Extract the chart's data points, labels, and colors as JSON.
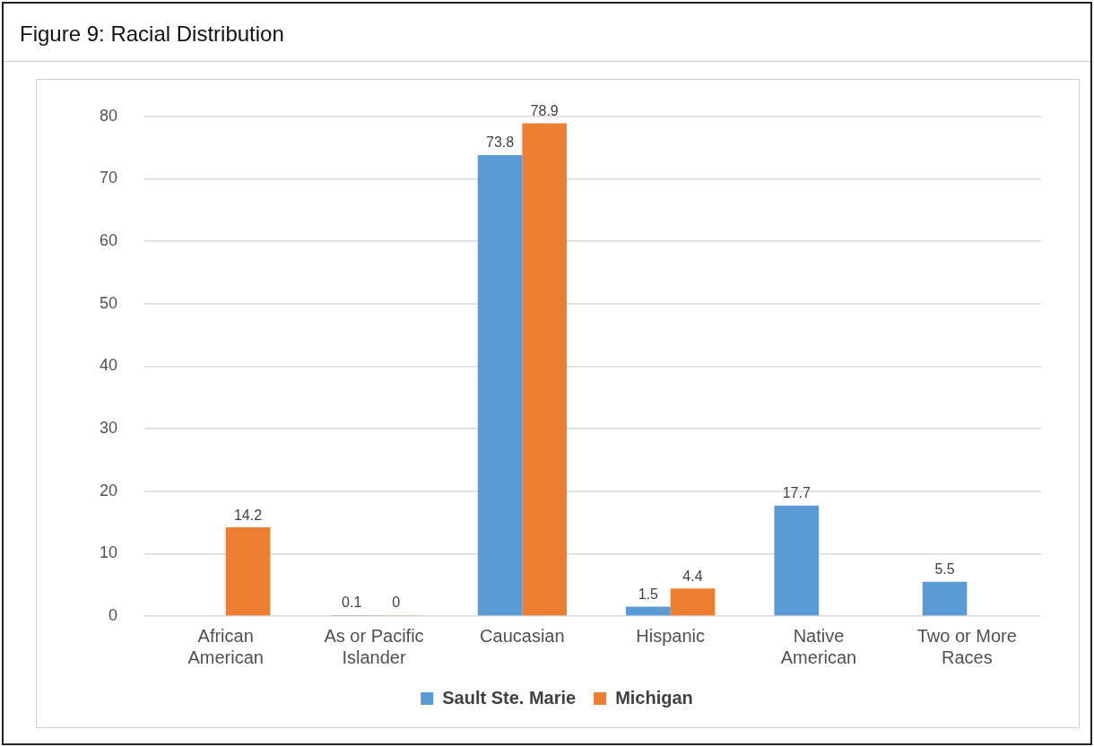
{
  "chart_data": {
    "type": "bar",
    "title": "Figure 9: Racial Distribution",
    "categories": [
      "African American",
      "As or Pacific Islander",
      "Caucasian",
      "Hispanic",
      "Native American",
      "Two or More Races"
    ],
    "series": [
      {
        "name": "Sault Ste. Marie",
        "color": "#5b9bd5",
        "values": [
          null,
          0.1,
          73.8,
          1.5,
          17.7,
          5.5
        ]
      },
      {
        "name": "Michigan",
        "color": "#ed7d31",
        "values": [
          14.2,
          0,
          78.9,
          4.4,
          null,
          null
        ]
      }
    ],
    "ylim": [
      0,
      80
    ],
    "yticks": [
      0,
      10,
      20,
      30,
      40,
      50,
      60,
      70,
      80
    ],
    "grid": "y",
    "legend": "bottom",
    "data_labels": true
  }
}
